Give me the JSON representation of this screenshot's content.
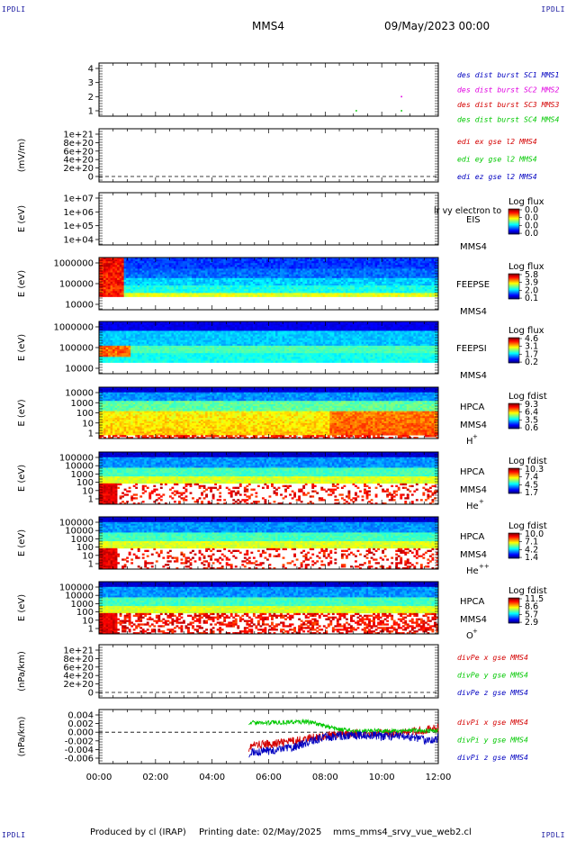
{
  "header": {
    "corner_label": "IPDLI",
    "spacecraft": "MMS4",
    "date": "09/May/2023 00:00"
  },
  "footer": {
    "produced_by": "Produced by cl (IRAP)",
    "printing_date": "Printing date: 02/May/2025",
    "filename": "mms_mms4_srvy_vue_web2.cl"
  },
  "colors": {
    "red": "#d40000",
    "green": "#00c800",
    "blue": "#0000c0",
    "magenta": "#e000e0",
    "dark_blue": "#0000a0"
  },
  "x_axis": {
    "ticks": [
      "00:00",
      "02:00",
      "04:00",
      "06:00",
      "08:00",
      "10:00",
      "12:00"
    ]
  },
  "chart_data": [
    {
      "type": "scatter",
      "panel": "burst",
      "yticks": [
        "4",
        "3",
        "2",
        "1"
      ],
      "ylim": [
        0.5,
        4.5
      ],
      "series": [
        {
          "name": "des dist burst SC1 MMS1",
          "color": "#0000c0",
          "points": []
        },
        {
          "name": "des dist burst SC2 MMS2",
          "color": "#e000e0",
          "points": [
            {
              "x": 10.7,
              "y": 2.0
            }
          ]
        },
        {
          "name": "des dist burst SC3 MMS3",
          "color": "#d40000",
          "points": []
        },
        {
          "name": "des dist burst SC4 MMS4",
          "color": "#00c800",
          "points": [
            {
              "x": 9.1,
              "y": 1.0
            },
            {
              "x": 10.7,
              "y": 1.0
            }
          ]
        }
      ],
      "xlim": [
        0,
        12
      ]
    },
    {
      "type": "line",
      "panel": "edi",
      "ylabel": "(mV/m)",
      "yticks": [
        "1e+21",
        "8e+20",
        "6e+20",
        "4e+20",
        "2e+20",
        "0"
      ],
      "zero_line": true,
      "series": [
        {
          "name": "edi ex gse l2 MMS4",
          "color": "#d40000"
        },
        {
          "name": "edi ey gse l2 MMS4",
          "color": "#00c800"
        },
        {
          "name": "edi ez gse l2 MMS4",
          "color": "#0000c0"
        }
      ]
    },
    {
      "type": "heatmap",
      "panel": "eis",
      "ylabel": "E (eV)",
      "yticks": [
        "1e+07",
        "1e+06",
        "1e+05",
        "1e+04"
      ],
      "label": "EIS",
      "overlap_text": "lr vy electron to",
      "sc": "MMS4",
      "colorbar": {
        "title": "Log flux",
        "ticks": [
          "0.0",
          "0.0",
          "0.0",
          "0.0"
        ]
      },
      "empty": true
    },
    {
      "type": "heatmap",
      "panel": "feepse",
      "ylabel": "E (eV)",
      "yticks": [
        "1000000",
        "100000",
        "10000"
      ],
      "label": "FEEPSE",
      "sc": "MMS4",
      "colorbar": {
        "title": "Log flux",
        "ticks": [
          "5.8",
          "3.9",
          "2.0",
          "0.1"
        ]
      }
    },
    {
      "type": "heatmap",
      "panel": "feepsi",
      "ylabel": "E (eV)",
      "yticks": [
        "1000000",
        "100000",
        "10000"
      ],
      "label": "FEEPSI",
      "sc": "MMS4",
      "colorbar": {
        "title": "Log flux",
        "ticks": [
          "4.6",
          "3.1",
          "1.7",
          "0.2"
        ]
      }
    },
    {
      "type": "heatmap",
      "panel": "hpca_h",
      "ylabel": "E (eV)",
      "yticks": [
        "10000",
        "1000",
        "100",
        "10",
        "1"
      ],
      "label": "HPCA",
      "sc": "MMS4",
      "ion": "H",
      "ion_charge": "+",
      "colorbar": {
        "title": "Log fdist",
        "ticks": [
          "9.3",
          "6.4",
          "3.5",
          "0.6"
        ]
      }
    },
    {
      "type": "heatmap",
      "panel": "hpca_he1",
      "ylabel": "E (eV)",
      "yticks": [
        "100000",
        "10000",
        "1000",
        "100",
        "10",
        "1"
      ],
      "label": "HPCA",
      "sc": "MMS4",
      "ion": "He",
      "ion_charge": "+",
      "colorbar": {
        "title": "Log fdist",
        "ticks": [
          "10.3",
          "7.4",
          "4.5",
          "1.7"
        ]
      }
    },
    {
      "type": "heatmap",
      "panel": "hpca_he2",
      "ylabel": "E (eV)",
      "yticks": [
        "100000",
        "10000",
        "1000",
        "100",
        "10",
        "1"
      ],
      "label": "HPCA",
      "sc": "MMS4",
      "ion": "He",
      "ion_charge": "++",
      "colorbar": {
        "title": "Log fdist",
        "ticks": [
          "10.0",
          "7.1",
          "4.2",
          "1.4"
        ]
      }
    },
    {
      "type": "heatmap",
      "panel": "hpca_o",
      "ylabel": "E (eV)",
      "yticks": [
        "100000",
        "10000",
        "1000",
        "100",
        "10",
        "1"
      ],
      "label": "HPCA",
      "sc": "MMS4",
      "ion": "O",
      "ion_charge": "+",
      "colorbar": {
        "title": "Log fdist",
        "ticks": [
          "11.5",
          "8.6",
          "5.7",
          "2.9"
        ]
      }
    },
    {
      "type": "line",
      "panel": "divpe",
      "ylabel": "(nPa/km)",
      "yticks": [
        "1e+21",
        "8e+20",
        "6e+20",
        "4e+20",
        "2e+20",
        "0"
      ],
      "zero_line": true,
      "series": [
        {
          "name": "divPe x gse MMS4",
          "color": "#d40000"
        },
        {
          "name": "divPe y gse MMS4",
          "color": "#00c800"
        },
        {
          "name": "divPe z gse MMS4",
          "color": "#0000c0"
        }
      ]
    },
    {
      "type": "line",
      "panel": "divpi",
      "ylabel": "(nPa/km)",
      "yticks": [
        "0.004",
        "0.002",
        "0.000",
        "-0.002",
        "-0.004",
        "-0.006"
      ],
      "ylim": [
        -0.007,
        0.005
      ],
      "xlim": [
        0,
        12
      ],
      "zero_line": true,
      "series": [
        {
          "name": "divPi x gse MMS4",
          "color": "#d40000",
          "x": [
            5.3,
            5.5,
            6.0,
            6.5,
            7.0,
            7.5,
            8.0,
            8.5,
            9.0,
            9.5,
            10.0,
            10.5,
            11.0,
            11.5,
            12.0
          ],
          "y": [
            -0.0035,
            -0.003,
            -0.0028,
            -0.0024,
            -0.002,
            -0.0013,
            -0.0008,
            -0.0005,
            -0.0004,
            -0.0003,
            -0.0003,
            -0.0002,
            0.0,
            0.0005,
            0.001
          ]
        },
        {
          "name": "divPi y gse MMS4",
          "color": "#00c800",
          "x": [
            5.3,
            5.5,
            6.0,
            6.5,
            7.0,
            7.5,
            8.0,
            8.5,
            9.0,
            9.5,
            10.0,
            10.5,
            11.0,
            11.5,
            12.0
          ],
          "y": [
            0.0022,
            0.0022,
            0.0022,
            0.0023,
            0.0024,
            0.0023,
            0.0014,
            0.0006,
            0.0003,
            0.0004,
            0.0003,
            0.0002,
            0.0005,
            0.0004,
            0.0003
          ]
        },
        {
          "name": "divPi z gse MMS4",
          "color": "#0000c0",
          "x": [
            5.3,
            5.5,
            6.0,
            6.5,
            7.0,
            7.5,
            8.0,
            8.5,
            9.0,
            9.5,
            10.0,
            10.5,
            11.0,
            11.5,
            12.0
          ],
          "y": [
            -0.0048,
            -0.0045,
            -0.0043,
            -0.004,
            -0.0032,
            -0.0021,
            -0.0012,
            -0.0008,
            -0.0007,
            -0.0006,
            -0.001,
            -0.0008,
            -0.0012,
            -0.0018,
            -0.0015
          ]
        }
      ]
    }
  ]
}
